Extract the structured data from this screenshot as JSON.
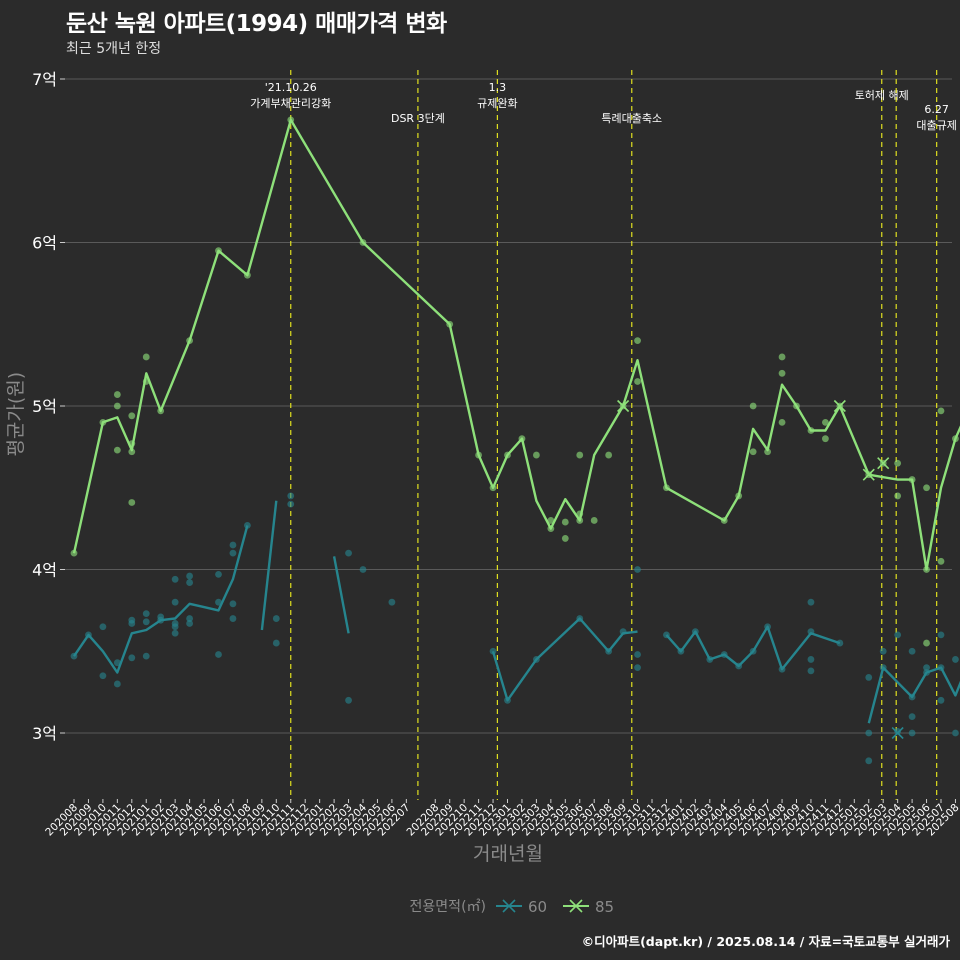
{
  "title": "둔산 녹원 아파트(1994) 매매가격 변화",
  "subtitle": "최근 5개년 한정",
  "caption": "©디아파트(dapt.kr) / 2025.08.14 / 자료=국토교통부 실거래가",
  "colors": {
    "background": "#2b2b2b",
    "grid": "#5a5a5a",
    "series_60": "#26858e",
    "series_85": "#8ee07a",
    "event_line": "#e0e020",
    "text": "#ffffff",
    "axis_title": "#8a8a8a"
  },
  "chart_data": {
    "type": "line",
    "xlabel": "거래년월",
    "ylabel": "평균가(원)",
    "ylim": [
      2.65,
      7.1
    ],
    "yticks": [
      {
        "value": 3,
        "label": "3억"
      },
      {
        "value": 4,
        "label": "4억"
      },
      {
        "value": 5,
        "label": "5억"
      },
      {
        "value": 6,
        "label": "6억"
      },
      {
        "value": 7,
        "label": "7억"
      }
    ],
    "categories": [
      "202008",
      "202009",
      "202010",
      "202011",
      "202012",
      "202101",
      "202102",
      "202103",
      "202104",
      "202105",
      "202106",
      "202107",
      "202108",
      "202109",
      "202110",
      "202111",
      "202112",
      "202201",
      "202202",
      "202203",
      "202204",
      "202205",
      "202206",
      "202207",
      "202208",
      "202209",
      "202210",
      "202211",
      "202212",
      "202301",
      "202302",
      "202303",
      "202304",
      "202305",
      "202306",
      "202307",
      "202308",
      "202309",
      "202310",
      "202311",
      "202312",
      "202401",
      "202402",
      "202403",
      "202404",
      "202405",
      "202406",
      "202407",
      "202408",
      "202409",
      "202410",
      "202411",
      "202412",
      "202501",
      "202502",
      "202503",
      "202504",
      "202505",
      "202506",
      "202507",
      "202508"
    ],
    "tick_x": [
      0.0,
      1.0,
      2.0,
      3.0,
      4.0,
      5.0,
      6.0,
      7.0,
      8.0,
      9.0,
      10.0,
      11.0,
      12.0,
      13.0,
      14.0,
      15.0,
      16.0,
      17.0,
      18.0,
      19.0,
      20.0,
      21.0,
      22.0,
      23.0,
      25.0,
      26.0,
      27.0,
      28.0,
      29.0,
      30.0,
      31.0,
      32.0,
      33.0,
      34.0,
      35.0,
      36.0,
      37.0,
      38.0,
      39.0,
      40.0,
      41.0,
      42.0,
      43.0,
      44.0,
      45.0,
      46.0,
      47.0,
      48.0,
      49.0,
      50.0,
      51.0,
      52.0,
      53.0,
      54.0,
      55.0,
      56.0,
      57.0,
      58.0,
      59.0,
      60.0,
      61.0
    ],
    "legend": {
      "title": "전용면적(㎡)",
      "position": "bottom",
      "entries": [
        "60",
        "85"
      ]
    },
    "series": [
      {
        "name": "60",
        "color": "#26858e",
        "segments": [
          [
            [
              0,
              3.47
            ],
            [
              1,
              3.6
            ],
            [
              2,
              3.5
            ],
            [
              3,
              3.37
            ],
            [
              4,
              3.61
            ],
            [
              5,
              3.63
            ],
            [
              6,
              3.69
            ],
            [
              7,
              3.7
            ],
            [
              8,
              3.79
            ],
            [
              9,
              3.77
            ],
            [
              10,
              3.75
            ],
            [
              11,
              3.94
            ],
            [
              12,
              4.27
            ]
          ],
          [
            [
              13,
              3.63
            ],
            [
              14,
              4.42
            ]
          ],
          [
            [
              18,
              4.08
            ],
            [
              19,
              3.61
            ]
          ],
          [
            [
              29,
              3.5
            ],
            [
              30,
              3.2
            ],
            [
              32,
              3.45
            ],
            [
              35,
              3.7
            ],
            [
              37,
              3.5
            ],
            [
              38,
              3.61
            ],
            [
              39,
              3.62
            ]
          ],
          [
            [
              41,
              3.6
            ],
            [
              42,
              3.5
            ],
            [
              43,
              3.62
            ],
            [
              44,
              3.45
            ],
            [
              45,
              3.48
            ],
            [
              46,
              3.41
            ],
            [
              47,
              3.5
            ],
            [
              48,
              3.65
            ],
            [
              49,
              3.39
            ],
            [
              51,
              3.61
            ],
            [
              53,
              3.55
            ]
          ],
          [
            [
              55,
              3.06
            ],
            [
              56,
              3.4
            ],
            [
              57,
              3.31
            ],
            [
              58,
              3.22
            ],
            [
              59,
              3.37
            ],
            [
              60,
              3.4
            ],
            [
              61,
              3.23
            ],
            [
              62,
              3.45
            ]
          ]
        ],
        "points": [
          [
            0,
            3.47
          ],
          [
            1,
            3.6
          ],
          [
            2,
            3.65
          ],
          [
            2,
            3.35
          ],
          [
            3,
            3.3
          ],
          [
            3,
            3.43
          ],
          [
            4,
            3.46
          ],
          [
            4,
            3.67
          ],
          [
            4,
            3.69
          ],
          [
            5,
            3.47
          ],
          [
            5,
            3.68
          ],
          [
            5,
            3.73
          ],
          [
            6,
            3.69
          ],
          [
            6,
            3.71
          ],
          [
            7,
            3.61
          ],
          [
            7,
            3.65
          ],
          [
            7,
            3.67
          ],
          [
            7,
            3.8
          ],
          [
            7,
            3.94
          ],
          [
            8,
            3.67
          ],
          [
            8,
            3.7
          ],
          [
            8,
            3.92
          ],
          [
            8,
            3.96
          ],
          [
            10,
            3.48
          ],
          [
            10,
            3.8
          ],
          [
            10,
            3.97
          ],
          [
            11,
            3.7
          ],
          [
            11,
            3.79
          ],
          [
            11,
            4.1
          ],
          [
            11,
            4.15
          ],
          [
            12,
            4.27
          ],
          [
            14,
            3.55
          ],
          [
            14,
            3.7
          ],
          [
            15,
            4.4
          ],
          [
            15,
            4.45
          ],
          [
            19,
            4.1
          ],
          [
            19,
            3.2
          ],
          [
            20,
            4.0
          ],
          [
            22,
            3.8
          ],
          [
            29,
            3.5
          ],
          [
            30,
            3.2
          ],
          [
            32,
            3.45
          ],
          [
            35,
            3.7
          ],
          [
            37,
            3.5
          ],
          [
            38,
            3.62
          ],
          [
            39,
            3.4
          ],
          [
            39,
            3.48
          ],
          [
            39,
            4.0
          ],
          [
            41,
            3.6
          ],
          [
            42,
            3.5
          ],
          [
            43,
            3.62
          ],
          [
            44,
            3.45
          ],
          [
            45,
            3.48
          ],
          [
            46,
            3.41
          ],
          [
            47,
            3.5
          ],
          [
            48,
            3.65
          ],
          [
            49,
            3.39
          ],
          [
            51,
            3.62
          ],
          [
            51,
            3.8
          ],
          [
            51,
            3.45
          ],
          [
            51,
            3.38
          ],
          [
            53,
            3.55
          ],
          [
            55,
            2.83
          ],
          [
            55,
            3.0
          ],
          [
            55,
            3.34
          ],
          [
            56,
            3.4
          ],
          [
            56,
            3.5
          ],
          [
            57,
            3.01
          ],
          [
            57,
            3.6
          ],
          [
            58,
            3.22
          ],
          [
            58,
            3.1
          ],
          [
            58,
            3.0
          ],
          [
            58,
            3.5
          ],
          [
            59,
            3.37
          ],
          [
            59,
            3.4
          ],
          [
            60,
            3.4
          ],
          [
            60,
            3.6
          ],
          [
            60,
            3.2
          ],
          [
            61,
            3.45
          ],
          [
            61,
            3.0
          ],
          [
            62,
            3.6
          ],
          [
            62,
            3.48
          ],
          [
            62,
            3.24
          ]
        ],
        "cross_points": [
          [
            57,
            3.0
          ]
        ]
      },
      {
        "name": "85",
        "color": "#8ee07a",
        "segments": [
          [
            [
              0,
              4.1
            ],
            [
              2,
              4.9
            ],
            [
              3,
              4.93
            ],
            [
              4,
              4.73
            ],
            [
              5,
              5.2
            ],
            [
              6,
              4.97
            ],
            [
              8,
              5.4
            ],
            [
              10,
              5.95
            ],
            [
              12,
              5.8
            ],
            [
              15,
              6.75
            ],
            [
              20,
              6.0
            ],
            [
              26,
              5.5
            ],
            [
              28,
              4.7
            ],
            [
              29,
              4.5
            ],
            [
              30,
              4.7
            ],
            [
              31,
              4.8
            ],
            [
              32,
              4.42
            ],
            [
              33,
              4.25
            ],
            [
              34,
              4.43
            ],
            [
              35,
              4.3
            ],
            [
              36,
              4.7
            ],
            [
              38,
              5.0
            ],
            [
              39,
              5.28
            ],
            [
              41,
              4.5
            ],
            [
              45,
              4.3
            ],
            [
              46,
              4.45
            ],
            [
              47,
              4.86
            ],
            [
              48,
              4.73
            ],
            [
              49,
              5.13
            ],
            [
              50,
              5.0
            ],
            [
              51,
              4.85
            ],
            [
              52,
              4.85
            ],
            [
              53,
              5.0
            ],
            [
              55,
              4.58
            ],
            [
              57,
              4.55
            ],
            [
              58,
              4.55
            ],
            [
              59,
              4.0
            ],
            [
              60,
              4.5
            ],
            [
              61,
              4.8
            ],
            [
              62,
              5.0
            ]
          ]
        ],
        "points": [
          [
            0,
            4.1
          ],
          [
            2,
            4.9
          ],
          [
            3,
            4.73
          ],
          [
            3,
            5.0
          ],
          [
            3,
            5.07
          ],
          [
            4,
            4.41
          ],
          [
            4,
            4.72
          ],
          [
            4,
            4.77
          ],
          [
            4,
            4.94
          ],
          [
            5,
            5.15
          ],
          [
            5,
            5.3
          ],
          [
            6,
            4.97
          ],
          [
            8,
            5.4
          ],
          [
            10,
            5.95
          ],
          [
            12,
            5.8
          ],
          [
            15,
            6.75
          ],
          [
            20,
            6.0
          ],
          [
            26,
            5.5
          ],
          [
            28,
            4.7
          ],
          [
            29,
            4.5
          ],
          [
            30,
            4.7
          ],
          [
            31,
            4.8
          ],
          [
            32,
            4.7
          ],
          [
            33,
            4.25
          ],
          [
            33,
            4.3
          ],
          [
            34,
            4.19
          ],
          [
            34,
            4.29
          ],
          [
            35,
            4.3
          ],
          [
            35,
            4.34
          ],
          [
            35,
            4.7
          ],
          [
            36,
            4.3
          ],
          [
            37,
            4.7
          ],
          [
            38,
            5.0
          ],
          [
            39,
            5.4
          ],
          [
            39,
            5.15
          ],
          [
            41,
            4.5
          ],
          [
            45,
            4.3
          ],
          [
            46,
            4.45
          ],
          [
            47,
            4.72
          ],
          [
            47,
            5.0
          ],
          [
            48,
            4.72
          ],
          [
            49,
            4.9
          ],
          [
            49,
            5.2
          ],
          [
            49,
            5.3
          ],
          [
            50,
            5.0
          ],
          [
            51,
            4.85
          ],
          [
            52,
            4.8
          ],
          [
            52,
            4.9
          ],
          [
            53,
            5.0
          ],
          [
            55,
            4.58
          ],
          [
            56,
            4.65
          ],
          [
            57,
            4.45
          ],
          [
            57,
            4.65
          ],
          [
            58,
            4.55
          ],
          [
            59,
            4.0
          ],
          [
            59,
            4.5
          ],
          [
            59,
            3.55
          ],
          [
            60,
            4.97
          ],
          [
            60,
            4.05
          ],
          [
            61,
            4.8
          ],
          [
            62,
            5.0
          ]
        ],
        "cross_points": [
          [
            38,
            5.0
          ],
          [
            53,
            5.0
          ],
          [
            55,
            4.58
          ],
          [
            56,
            4.65
          ]
        ]
      }
    ],
    "events": [
      {
        "x": 15,
        "label_lines": [
          "'21.10.26",
          "가계부채관리강화"
        ],
        "label_top": 91
      },
      {
        "x": 23.8,
        "label_lines": [
          "DSR 3단계"
        ],
        "label_top": 122
      },
      {
        "x": 29.3,
        "label_lines": [
          "1.3",
          "규제완화"
        ],
        "label_top": 91
      },
      {
        "x": 38.6,
        "label_lines": [
          "특례대출축소"
        ],
        "label_top": 122
      },
      {
        "x": 55.9,
        "label_lines": [
          "토허제 해제"
        ],
        "label_top": 99
      },
      {
        "x": 56.9,
        "label_lines": [],
        "label_top": 0
      },
      {
        "x": 59.7,
        "label_lines": [
          "6.27",
          "대출규제"
        ],
        "label_top": 113
      }
    ]
  }
}
